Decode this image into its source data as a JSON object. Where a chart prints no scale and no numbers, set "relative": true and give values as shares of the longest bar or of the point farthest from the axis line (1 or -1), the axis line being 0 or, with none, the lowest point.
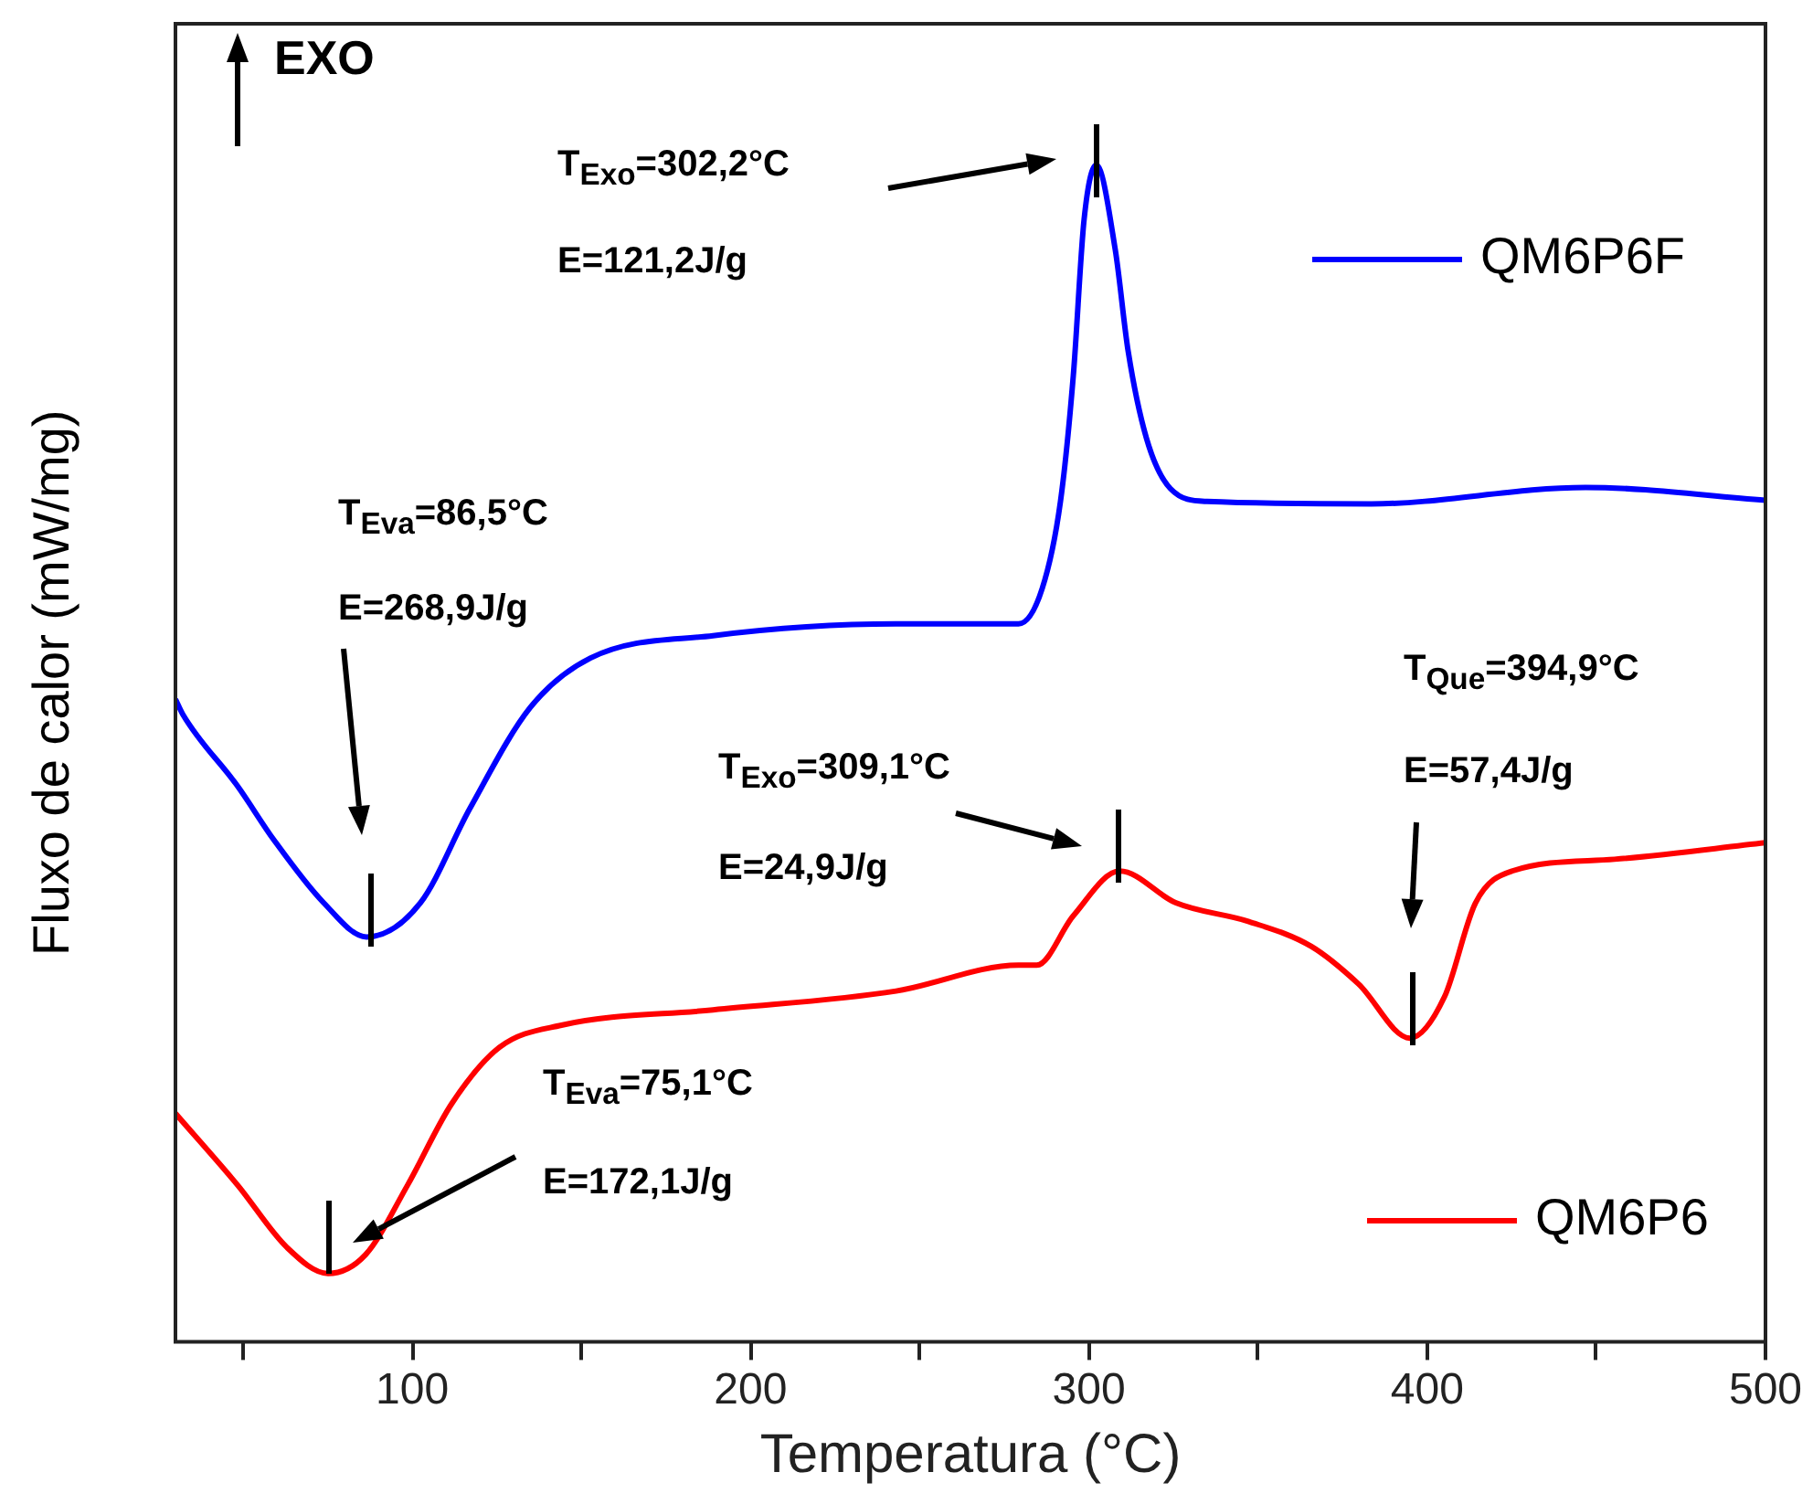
{
  "chart_data": {
    "type": "line",
    "relative": true,
    "xlabel": "Temperatura (°C)",
    "ylabel": "Fluxo de calor (mW/mg)",
    "xlim": [
      30,
      500
    ],
    "xticks": [
      {
        "value": 50,
        "label": null
      },
      100,
      {
        "value": 150,
        "label": null
      },
      200,
      {
        "value": 250,
        "label": null
      },
      300,
      {
        "value": 350,
        "label": null
      },
      400,
      {
        "value": 450,
        "label": null
      },
      500
    ],
    "grid": false,
    "legend": "right",
    "marker": "none",
    "line_style": "solid",
    "series": [
      {
        "name": "QM6P6F",
        "color": "#0000ff",
        "x": [
          30,
          32.2,
          48.4,
          59.2,
          73.8,
          86.5,
          102.4,
          117,
          134.9,
          152.7,
          188.9,
          243,
          279.2,
          286.2,
          291.6,
          295.4,
          298.6,
          302.2,
          307.8,
          311.6,
          317,
          324.1,
          334.9,
          383.5,
          446.8,
          500
        ],
        "values": [
          0.546,
          0.533,
          0.472,
          0.426,
          0.373,
          0.344,
          0.373,
          0.453,
          0.539,
          0.581,
          0.6,
          0.61,
          0.61,
          0.64,
          0.714,
          0.821,
          0.954,
          1,
          0.928,
          0.842,
          0.768,
          0.725,
          0.714,
          0.712,
          0.726,
          0.715
        ]
      },
      {
        "name": "QM6P6",
        "color": "#ff0000",
        "x": [
          30,
          48.4,
          63,
          75.1,
          86.2,
          98.6,
          111.6,
          125.7,
          144.1,
          188.9,
          243,
          279.2,
          284.6,
          295.4,
          309.1,
          325.7,
          347.3,
          365.7,
          379.7,
          394.9,
          405.1,
          414.3,
          425.1,
          455.4,
          500
        ],
        "values": [
          0.194,
          0.133,
          0.08,
          0.058,
          0.074,
          0.133,
          0.202,
          0.25,
          0.269,
          0.282,
          0.298,
          0.32,
          0.32,
          0.362,
          0.4,
          0.373,
          0.357,
          0.336,
          0.304,
          0.258,
          0.293,
          0.373,
          0.4,
          0.41,
          0.424
        ]
      }
    ],
    "annotations": [
      "EXO",
      "T$_{Exo}$=302,2°C",
      "E=121,2J/g",
      "T$_{Eva}$=86,5°C",
      "E=268,9J/g",
      "T$_{Exo}$=309,1°C",
      "E=24,9J/g",
      "T$_{Que}$=394,9°C",
      "E=57,4J/g",
      "T$_{Eva}$=75,1°C",
      "E=172,1J/g"
    ]
  }
}
